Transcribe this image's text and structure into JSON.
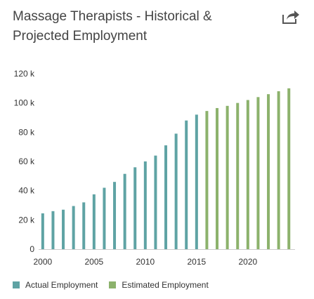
{
  "header": {
    "title": "Massage Therapists - Historical & Projected Employment",
    "share_icon": "share-arrow-icon"
  },
  "colors": {
    "actual": "#5fa3a4",
    "estimated": "#8cb26c",
    "axis": "#cccccc",
    "tick_text": "#333333"
  },
  "chart_data": {
    "type": "bar",
    "title": "Massage Therapists - Historical & Projected Employment",
    "xlabel": "",
    "ylabel": "",
    "ylim": [
      0,
      120000
    ],
    "y_ticks": [
      0,
      20000,
      40000,
      60000,
      80000,
      100000,
      120000
    ],
    "y_tick_labels": [
      "0",
      "20 k",
      "40 k",
      "60 k",
      "80 k",
      "100 k",
      "120 k"
    ],
    "x_ticks": [
      2000,
      2005,
      2010,
      2015,
      2020
    ],
    "x_tick_labels": [
      "2000",
      "2005",
      "2010",
      "2015",
      "2020"
    ],
    "grid": false,
    "legend": "bottom-left",
    "series": [
      {
        "name": "Actual Employment",
        "x": [
          2000,
          2001,
          2002,
          2003,
          2004,
          2005,
          2006,
          2007,
          2008,
          2009,
          2010,
          2011,
          2012,
          2013,
          2014,
          2015
        ],
        "values": [
          24500,
          26000,
          27000,
          29500,
          32000,
          37500,
          42000,
          46000,
          51500,
          56000,
          60000,
          64000,
          71000,
          79000,
          88000,
          92000
        ]
      },
      {
        "name": "Estimated Employment",
        "x": [
          2016,
          2017,
          2018,
          2019,
          2020,
          2021,
          2022,
          2023,
          2024
        ],
        "values": [
          94500,
          96500,
          98000,
          100000,
          102000,
          104000,
          106000,
          108000,
          110000
        ]
      }
    ]
  },
  "legend": {
    "actual_label": "Actual Employment",
    "estimated_label": "Estimated Employment"
  }
}
